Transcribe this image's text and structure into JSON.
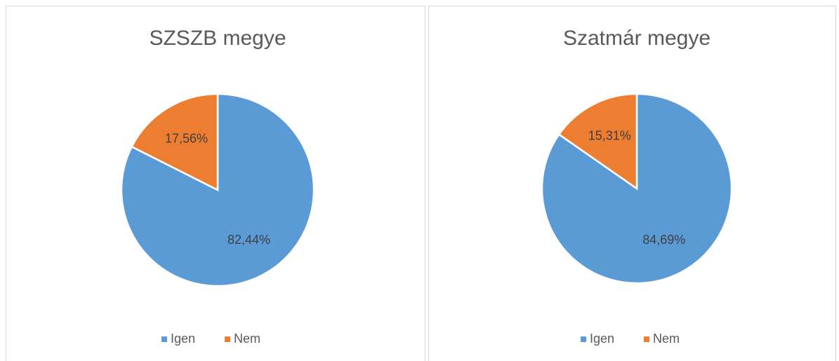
{
  "chart_data": [
    {
      "type": "pie",
      "title": "SZSZB megye",
      "categories": [
        "Igen",
        "Nem"
      ],
      "values": [
        82.44,
        17.56
      ],
      "value_labels": [
        "82,44%",
        "17,56%"
      ],
      "colors": [
        "#5b9bd5",
        "#ed7d31"
      ],
      "legend": "bottom"
    },
    {
      "type": "pie",
      "title": "Szatmár megye",
      "categories": [
        "Igen",
        "Nem"
      ],
      "values": [
        84.69,
        15.31
      ],
      "value_labels": [
        "84,69%",
        "15,31%"
      ],
      "colors": [
        "#5b9bd5",
        "#ed7d31"
      ],
      "legend": "bottom"
    }
  ]
}
